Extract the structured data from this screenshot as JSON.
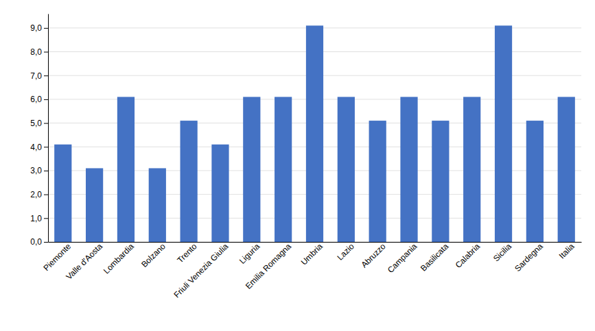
{
  "chart_data": {
    "type": "bar",
    "categories": [
      "Piemonte",
      "Valle d'Aosta",
      "Lombardia",
      "Bolzano",
      "Trento",
      "Friuli Venezia Giulia",
      "Liguria",
      "Emilia Romagna",
      "Umbria",
      "Lazio",
      "Abruzzo",
      "Campania",
      "Basilicata",
      "Calabria",
      "Sicilia",
      "Sardegna",
      "Italia"
    ],
    "values": [
      4.1,
      3.1,
      6.1,
      3.1,
      5.1,
      4.1,
      6.1,
      6.1,
      9.1,
      6.1,
      5.1,
      6.1,
      5.1,
      6.1,
      9.1,
      5.1,
      6.1
    ],
    "color": "#4472C4",
    "ylim": [
      0,
      9.6
    ],
    "yticks": [
      {
        "value": 0.0,
        "label": "0,0"
      },
      {
        "value": 1.0,
        "label": "1,0"
      },
      {
        "value": 2.0,
        "label": "2,0"
      },
      {
        "value": 3.0,
        "label": "3,0"
      },
      {
        "value": 4.0,
        "label": "4,0"
      },
      {
        "value": 5.0,
        "label": "5,0"
      },
      {
        "value": 6.0,
        "label": "6,0"
      },
      {
        "value": 7.0,
        "label": "7,0"
      },
      {
        "value": 8.0,
        "label": "8,0"
      },
      {
        "value": 9.0,
        "label": "9,0"
      }
    ],
    "grid": true
  }
}
